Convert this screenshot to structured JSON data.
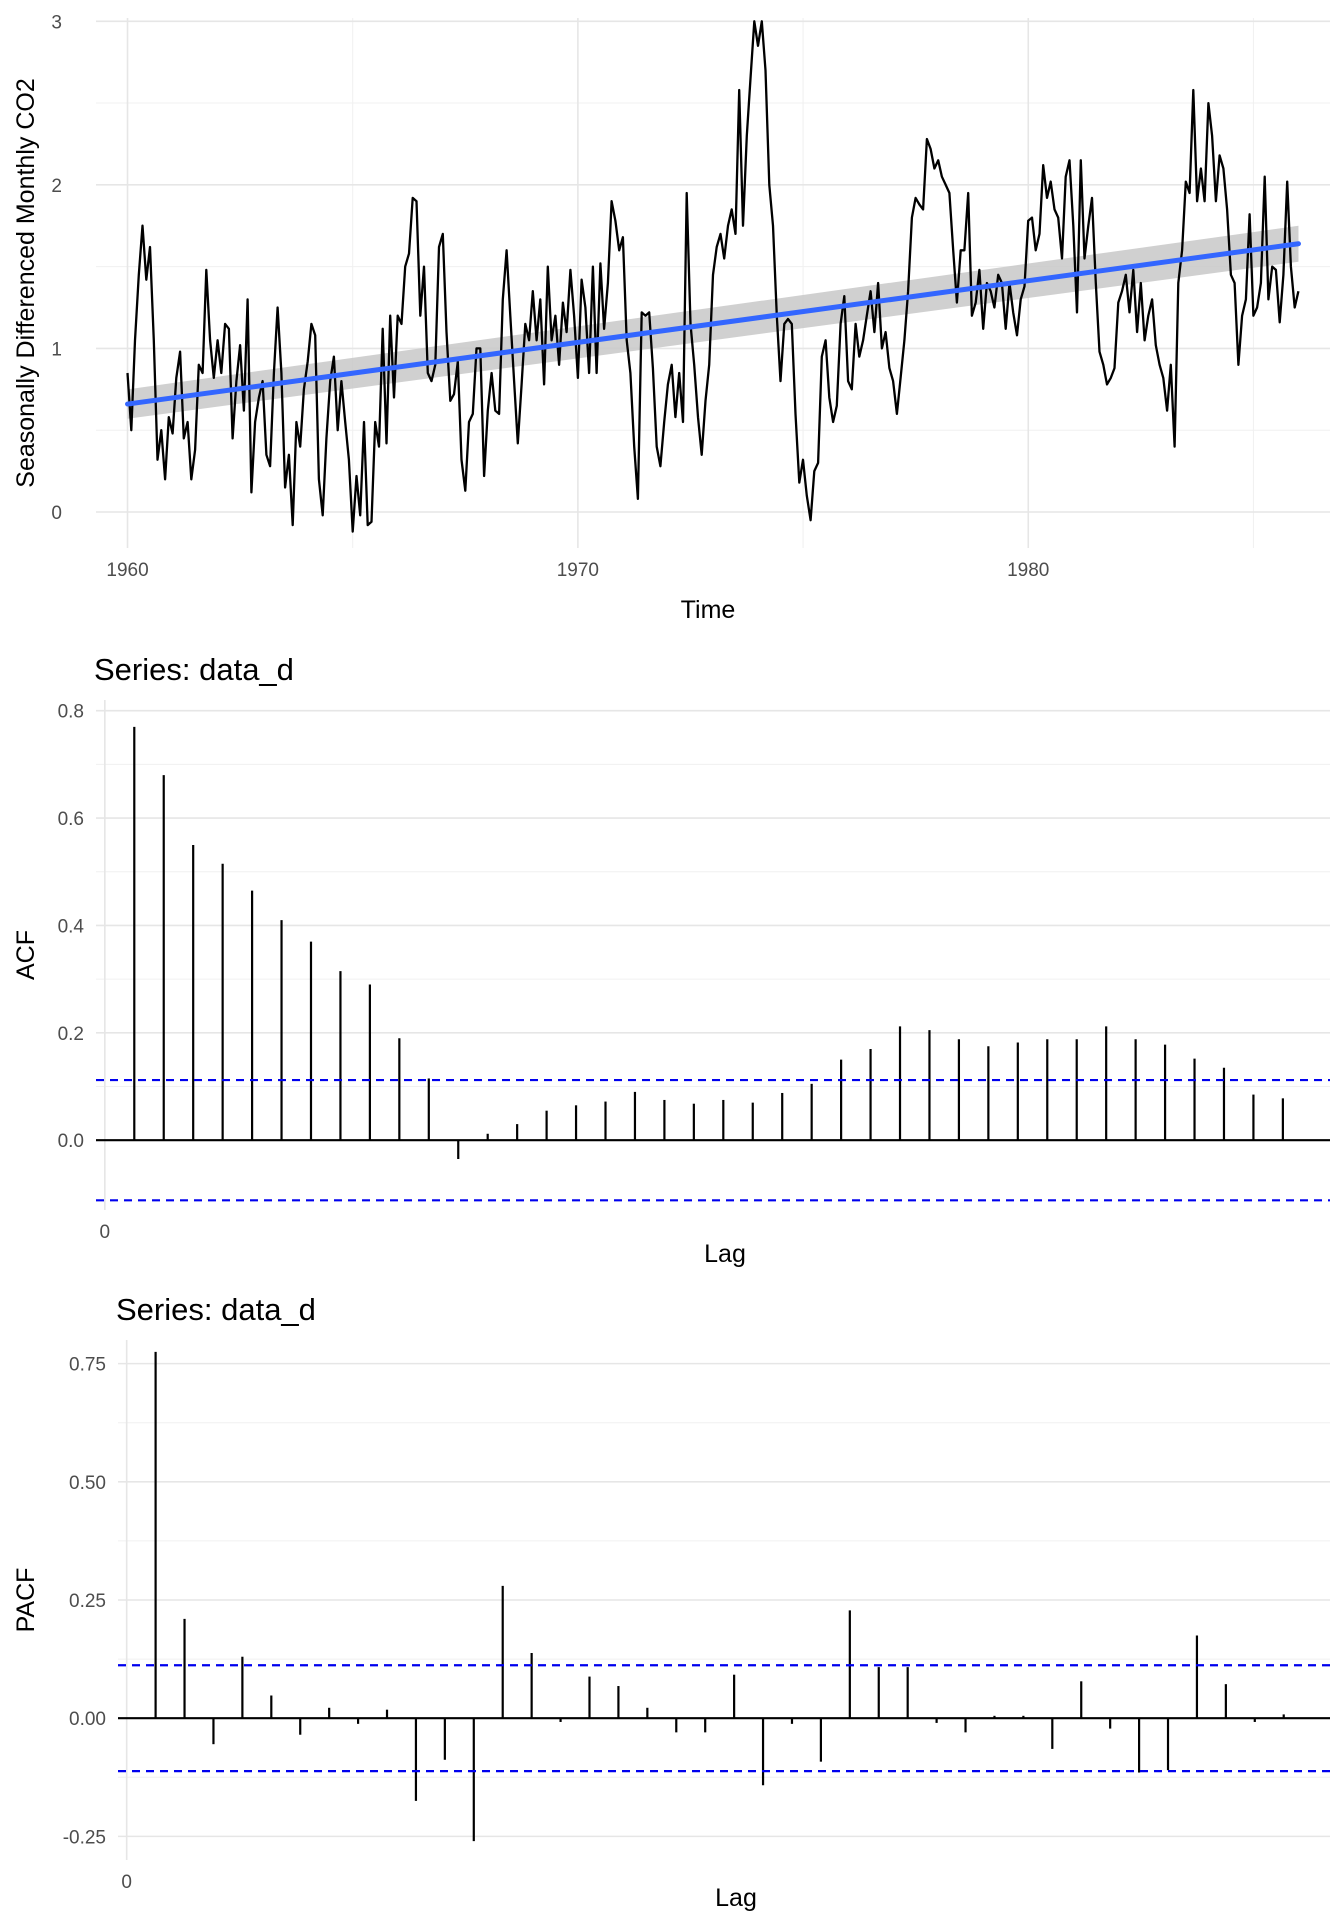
{
  "chart_data": [
    {
      "type": "line",
      "title": "",
      "xlabel": "Time",
      "ylabel": "Seasonally Differenced Monthly CO2",
      "x_ticks": [
        "1960",
        "1970",
        "1980"
      ],
      "y_ticks": [
        "0",
        "1",
        "2",
        "3"
      ],
      "xlim": [
        1959.3,
        1986.7
      ],
      "ylim": [
        -0.22,
        3.02
      ],
      "grid": true,
      "colors": {
        "series": "#000000",
        "trend": "#3366ff",
        "band": "#c8c8c8"
      },
      "series": [
        {
          "x_start": 1960.0,
          "x_step": 0.08333,
          "values": [
            0.85,
            0.5,
            1.05,
            1.45,
            1.75,
            1.42,
            1.62,
            1.05,
            0.32,
            0.5,
            0.2,
            0.58,
            0.48,
            0.82,
            0.98,
            0.45,
            0.55,
            0.2,
            0.38,
            0.9,
            0.85,
            1.48,
            1.05,
            0.82,
            1.05,
            0.85,
            1.15,
            1.12,
            0.45,
            0.8,
            1.02,
            0.62,
            1.3,
            0.12,
            0.55,
            0.7,
            0.8,
            0.35,
            0.28,
            0.85,
            1.25,
            0.85,
            0.15,
            0.35,
            -0.08,
            0.55,
            0.4,
            0.75,
            0.92,
            1.15,
            1.08,
            0.2,
            -0.02,
            0.45,
            0.8,
            0.95,
            0.5,
            0.8,
            0.55,
            0.32,
            -0.12,
            0.22,
            -0.02,
            0.55,
            -0.08,
            -0.06,
            0.55,
            0.4,
            1.12,
            0.42,
            1.2,
            0.7,
            1.2,
            1.15,
            1.5,
            1.58,
            1.92,
            1.9,
            1.2,
            1.5,
            0.85,
            0.8,
            0.9,
            1.62,
            1.7,
            1.1,
            0.68,
            0.72,
            0.92,
            0.32,
            0.13,
            0.55,
            0.6,
            1.0,
            1.0,
            0.22,
            0.62,
            0.85,
            0.62,
            0.6,
            1.3,
            1.6,
            1.2,
            0.8,
            0.42,
            0.78,
            1.15,
            1.05,
            1.35,
            1.05,
            1.3,
            0.78,
            1.5,
            1.05,
            1.2,
            0.9,
            1.28,
            1.1,
            1.48,
            1.2,
            0.82,
            1.42,
            1.25,
            0.85,
            1.5,
            0.85,
            1.52,
            1.12,
            1.4,
            1.9,
            1.78,
            1.6,
            1.68,
            1.05,
            0.85,
            0.4,
            0.08,
            1.22,
            1.2,
            1.22,
            0.88,
            0.4,
            0.28,
            0.55,
            0.78,
            0.9,
            0.58,
            0.85,
            0.55,
            1.95,
            1.15,
            0.9,
            0.58,
            0.35,
            0.68,
            0.9,
            1.45,
            1.62,
            1.7,
            1.55,
            1.75,
            1.85,
            1.7,
            2.58,
            1.75,
            2.3,
            2.65,
            3.0,
            2.85,
            3.0,
            2.7,
            2.0,
            1.75,
            1.2,
            0.8,
            1.15,
            1.18,
            1.15,
            0.6,
            0.18,
            0.32,
            0.1,
            -0.05,
            0.25,
            0.3,
            0.95,
            1.05,
            0.7,
            0.55,
            0.65,
            1.15,
            1.32,
            0.8,
            0.75,
            1.15,
            0.95,
            1.05,
            1.2,
            1.35,
            1.1,
            1.4,
            1.0,
            1.1,
            0.88,
            0.8,
            0.6,
            0.82,
            1.05,
            1.35,
            1.8,
            1.92,
            1.88,
            1.85,
            2.28,
            2.22,
            2.1,
            2.15,
            2.05,
            2.0,
            1.95,
            1.6,
            1.28,
            1.6,
            1.6,
            1.95,
            1.2,
            1.28,
            1.48,
            1.12,
            1.4,
            1.35,
            1.25,
            1.45,
            1.4,
            1.12,
            1.4,
            1.22,
            1.08,
            1.3,
            1.38,
            1.78,
            1.8,
            1.6,
            1.7,
            2.12,
            1.92,
            2.02,
            1.85,
            1.8,
            1.55,
            2.05,
            2.15,
            1.75,
            1.22,
            2.15,
            1.55,
            1.75,
            1.92,
            1.4,
            0.98,
            0.9,
            0.78,
            0.82,
            0.88,
            1.28,
            1.35,
            1.45,
            1.22,
            1.48,
            1.1,
            1.4,
            1.05,
            1.2,
            1.3,
            1.02,
            0.9,
            0.82,
            0.62,
            0.9,
            0.4,
            1.4,
            1.6,
            2.02,
            1.95,
            2.58,
            1.9,
            2.1,
            1.9,
            2.5,
            2.3,
            1.9,
            2.18,
            2.1,
            1.85,
            1.45,
            1.4,
            0.9,
            1.2,
            1.3,
            1.82,
            1.2,
            1.25,
            1.4,
            2.05,
            1.3,
            1.5,
            1.48,
            1.16,
            1.45,
            2.02,
            1.5,
            1.25,
            1.35
          ]
        },
        {
          "name": "",
          "kind": "linear-fit",
          "x": [
            1960.0,
            1986.0
          ],
          "values": [
            0.66,
            1.64
          ],
          "band_halfwidth": [
            0.09,
            0.11
          ]
        }
      ]
    },
    {
      "type": "bar",
      "title": "Series: data_d",
      "xlabel": "Lag",
      "ylabel": "ACF",
      "x_ticks": [
        "0"
      ],
      "y_ticks": [
        "0.0",
        "0.2",
        "0.4",
        "0.6",
        "0.8"
      ],
      "xlim": [
        -0.3,
        41.6
      ],
      "ylim": [
        -0.13,
        0.82
      ],
      "grid": true,
      "ci": 0.112,
      "colors": {
        "bars": "#000000",
        "ci": "#0000ee"
      },
      "lags": [
        1,
        2,
        3,
        4,
        5,
        6,
        7,
        8,
        9,
        10,
        11,
        12,
        13,
        14,
        15,
        16,
        17,
        18,
        19,
        20,
        21,
        22,
        23,
        24,
        25,
        26,
        27,
        28,
        29,
        30,
        31,
        32,
        33,
        34,
        35,
        36,
        37,
        38,
        39,
        40
      ],
      "values": [
        0.77,
        0.68,
        0.55,
        0.515,
        0.465,
        0.41,
        0.37,
        0.315,
        0.29,
        0.19,
        0.115,
        -0.035,
        0.012,
        0.03,
        0.055,
        0.065,
        0.072,
        0.09,
        0.075,
        0.068,
        0.075,
        0.07,
        0.088,
        0.105,
        0.15,
        0.17,
        0.212,
        0.205,
        0.188,
        0.175,
        0.182,
        0.188,
        0.188,
        0.212,
        0.188,
        0.178,
        0.152,
        0.135,
        0.085,
        0.078
      ]
    },
    {
      "type": "bar",
      "title": "Series: data_d",
      "xlabel": "Lag",
      "ylabel": "PACF",
      "x_ticks": [
        "0"
      ],
      "y_ticks": [
        "-0.25",
        "0.00",
        "0.25",
        "0.50",
        "0.75"
      ],
      "xlim": [
        -0.3,
        41.6
      ],
      "ylim": [
        -0.3,
        0.8
      ],
      "grid": true,
      "ci": 0.112,
      "colors": {
        "bars": "#000000",
        "ci": "#0000ee"
      },
      "lags": [
        1,
        2,
        3,
        4,
        5,
        6,
        7,
        8,
        9,
        10,
        11,
        12,
        13,
        14,
        15,
        16,
        17,
        18,
        19,
        20,
        21,
        22,
        23,
        24,
        25,
        26,
        27,
        28,
        29,
        30,
        31,
        32,
        33,
        34,
        35,
        36,
        37,
        38,
        39,
        40
      ],
      "values": [
        0.775,
        0.21,
        -0.055,
        0.13,
        0.048,
        -0.035,
        0.022,
        -0.012,
        0.018,
        -0.175,
        -0.088,
        -0.26,
        0.28,
        0.138,
        -0.008,
        0.088,
        0.068,
        0.022,
        -0.03,
        -0.03,
        0.092,
        -0.142,
        -0.012,
        -0.092,
        0.228,
        0.108,
        0.108,
        -0.01,
        -0.03,
        0.005,
        0.005,
        -0.065,
        0.078,
        -0.022,
        -0.115,
        -0.11,
        0.175,
        0.072,
        -0.008,
        0.008
      ]
    }
  ]
}
